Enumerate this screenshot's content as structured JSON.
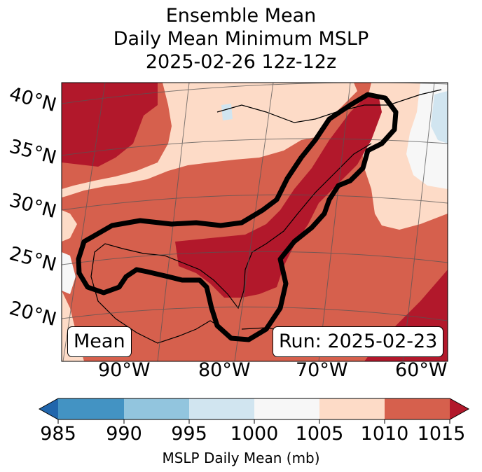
{
  "title": {
    "line1": "Ensemble Mean",
    "line2": "Daily Mean Minimum MSLP",
    "line3": "2025-02-26 12z-12z"
  },
  "map": {
    "lat_labels": [
      "40°N",
      "35°N",
      "30°N",
      "25°N",
      "20°N"
    ],
    "lon_labels": [
      "90°W",
      "80°W",
      "70°W",
      "60°W"
    ],
    "mean_box": "Mean",
    "run_box": "Run: 2025-02-23"
  },
  "colorbar": {
    "ticks": [
      "985",
      "990",
      "995",
      "1000",
      "1005",
      "1010",
      "1015"
    ],
    "label": "MSLP Daily Mean (mb)",
    "colors": [
      "#2166ac",
      "#4393c3",
      "#92c5de",
      "#d1e5f0",
      "#f7f7f7",
      "#fddbc7",
      "#d6604d",
      "#b2182b"
    ]
  }
}
